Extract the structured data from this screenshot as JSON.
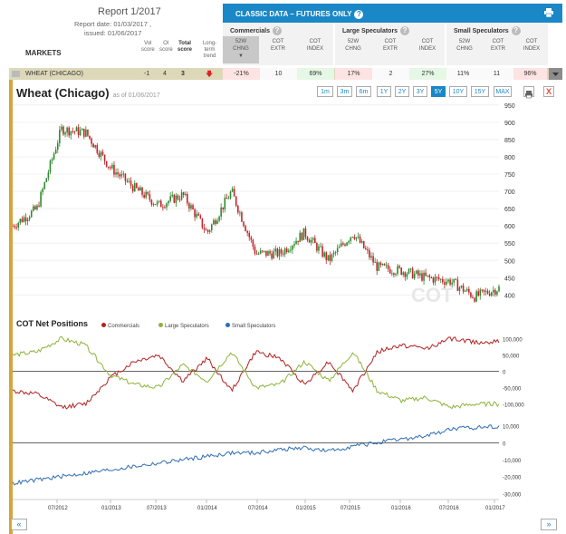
{
  "report": {
    "title": "Report 1/2017",
    "date_line": "Report date: 01/03/2017 ,",
    "issued_line": "issued: 01/06/2017"
  },
  "markets_label": "MARKETS",
  "columns": {
    "vol": [
      "Vol",
      "score"
    ],
    "oi": [
      "OI",
      "score"
    ],
    "total": [
      "Total",
      "score"
    ],
    "trend": [
      "Long-term",
      "trend"
    ]
  },
  "classic_label": "CLASSIC DATA – FUTURES ONLY",
  "groups": [
    {
      "title": "Commercials",
      "subs": [
        [
          "52W",
          "CHNG"
        ],
        [
          "COT",
          "EXTR"
        ],
        [
          "COT",
          "INDEX"
        ]
      ]
    },
    {
      "title": "Large Speculators",
      "subs": [
        [
          "52W",
          "CHNG"
        ],
        [
          "COT",
          "EXTR"
        ],
        [
          "COT",
          "INDEX"
        ]
      ]
    },
    {
      "title": "Small Speculators",
      "subs": [
        [
          "52W",
          "CHNG"
        ],
        [
          "COT",
          "EXTR"
        ],
        [
          "COT",
          "INDEX"
        ]
      ]
    }
  ],
  "row": {
    "market": "WHEAT (CHICAGO)",
    "vol": "-1",
    "oi": "4",
    "total": "3",
    "values": [
      "-21%",
      "10",
      "69%",
      "17%",
      "2",
      "27%",
      "11%",
      "11",
      "96%"
    ],
    "value_colors": [
      "#fde3e3",
      "#fafafa",
      "#e5f7e5",
      "#fde3e3",
      "#fafafa",
      "#e5f7e5",
      "#fafafa",
      "#fafafa",
      "#fde3e3"
    ]
  },
  "chart": {
    "title": "Wheat (Chicago)",
    "as_of": "as of 01/06/2017",
    "zoom": [
      "1m",
      "3m",
      "6m",
      "1Y",
      "2Y",
      "3Y",
      "5Y",
      "10Y",
      "15Y",
      "MAX"
    ],
    "zoom_active": "5Y",
    "price_ticks": [
      "950",
      "900",
      "850",
      "800",
      "750",
      "700",
      "650",
      "600",
      "550",
      "500",
      "450",
      "400"
    ],
    "watermark": "COT"
  },
  "cot": {
    "title": "COT Net Positions",
    "legend": [
      {
        "name": "Commercials",
        "color": "#b22222"
      },
      {
        "name": "Large Speculators",
        "color": "#8db33a"
      },
      {
        "name": "Small Speculators",
        "color": "#2f6db5"
      }
    ],
    "upper_ticks": [
      "100,000",
      "50,000",
      "0",
      "-50,000",
      "-100,000"
    ],
    "lower_ticks": [
      "10,000",
      "0",
      "-10,000",
      "-20,000",
      "-30,000"
    ]
  },
  "x_labels": [
    "07/2012",
    "01/2013",
    "07/2013",
    "01/2014",
    "07/2014",
    "01/2015",
    "07/2015",
    "01/2016",
    "07/2016",
    "01/2017"
  ],
  "nav": {
    "prev": "«",
    "next": "»"
  },
  "chart_data": {
    "type": "line",
    "title": "Wheat (Chicago)",
    "x": [
      "2012-01",
      "2012-04",
      "2012-07",
      "2012-10",
      "2013-01",
      "2013-04",
      "2013-07",
      "2013-10",
      "2014-01",
      "2014-04",
      "2014-07",
      "2014-10",
      "2015-01",
      "2015-04",
      "2015-07",
      "2015-10",
      "2016-01",
      "2016-04",
      "2016-07",
      "2016-10",
      "2017-01"
    ],
    "series": [
      {
        "name": "Price",
        "values": [
          600,
          650,
          880,
          870,
          770,
          710,
          660,
          690,
          580,
          700,
          520,
          520,
          580,
          500,
          580,
          480,
          470,
          450,
          440,
          395,
          420
        ]
      },
      {
        "name": "Commercials",
        "values": [
          -60000,
          -70000,
          -110000,
          -100000,
          -20000,
          30000,
          50000,
          -30000,
          40000,
          -60000,
          60000,
          40000,
          -40000,
          30000,
          -60000,
          60000,
          80000,
          70000,
          100000,
          90000,
          90000
        ]
      },
      {
        "name": "Large Speculators",
        "values": [
          50000,
          60000,
          100000,
          80000,
          -10000,
          -40000,
          -50000,
          20000,
          -30000,
          60000,
          -50000,
          -40000,
          30000,
          -30000,
          60000,
          -60000,
          -90000,
          -80000,
          -110000,
          -100000,
          -100000
        ]
      },
      {
        "name": "Small Speculators",
        "values": [
          -24000,
          -22000,
          -20000,
          -18000,
          -16000,
          -14000,
          -12000,
          -10000,
          -8000,
          -6000,
          -6000,
          -4000,
          -3000,
          -5000,
          -2000,
          0,
          2000,
          4000,
          8000,
          9000,
          10000
        ]
      }
    ],
    "ylim_price": [
      380,
      960
    ],
    "ylim_cot_upper": [
      -140000,
      110000
    ],
    "ylim_cot_lower": [
      -32000,
      12000
    ]
  }
}
